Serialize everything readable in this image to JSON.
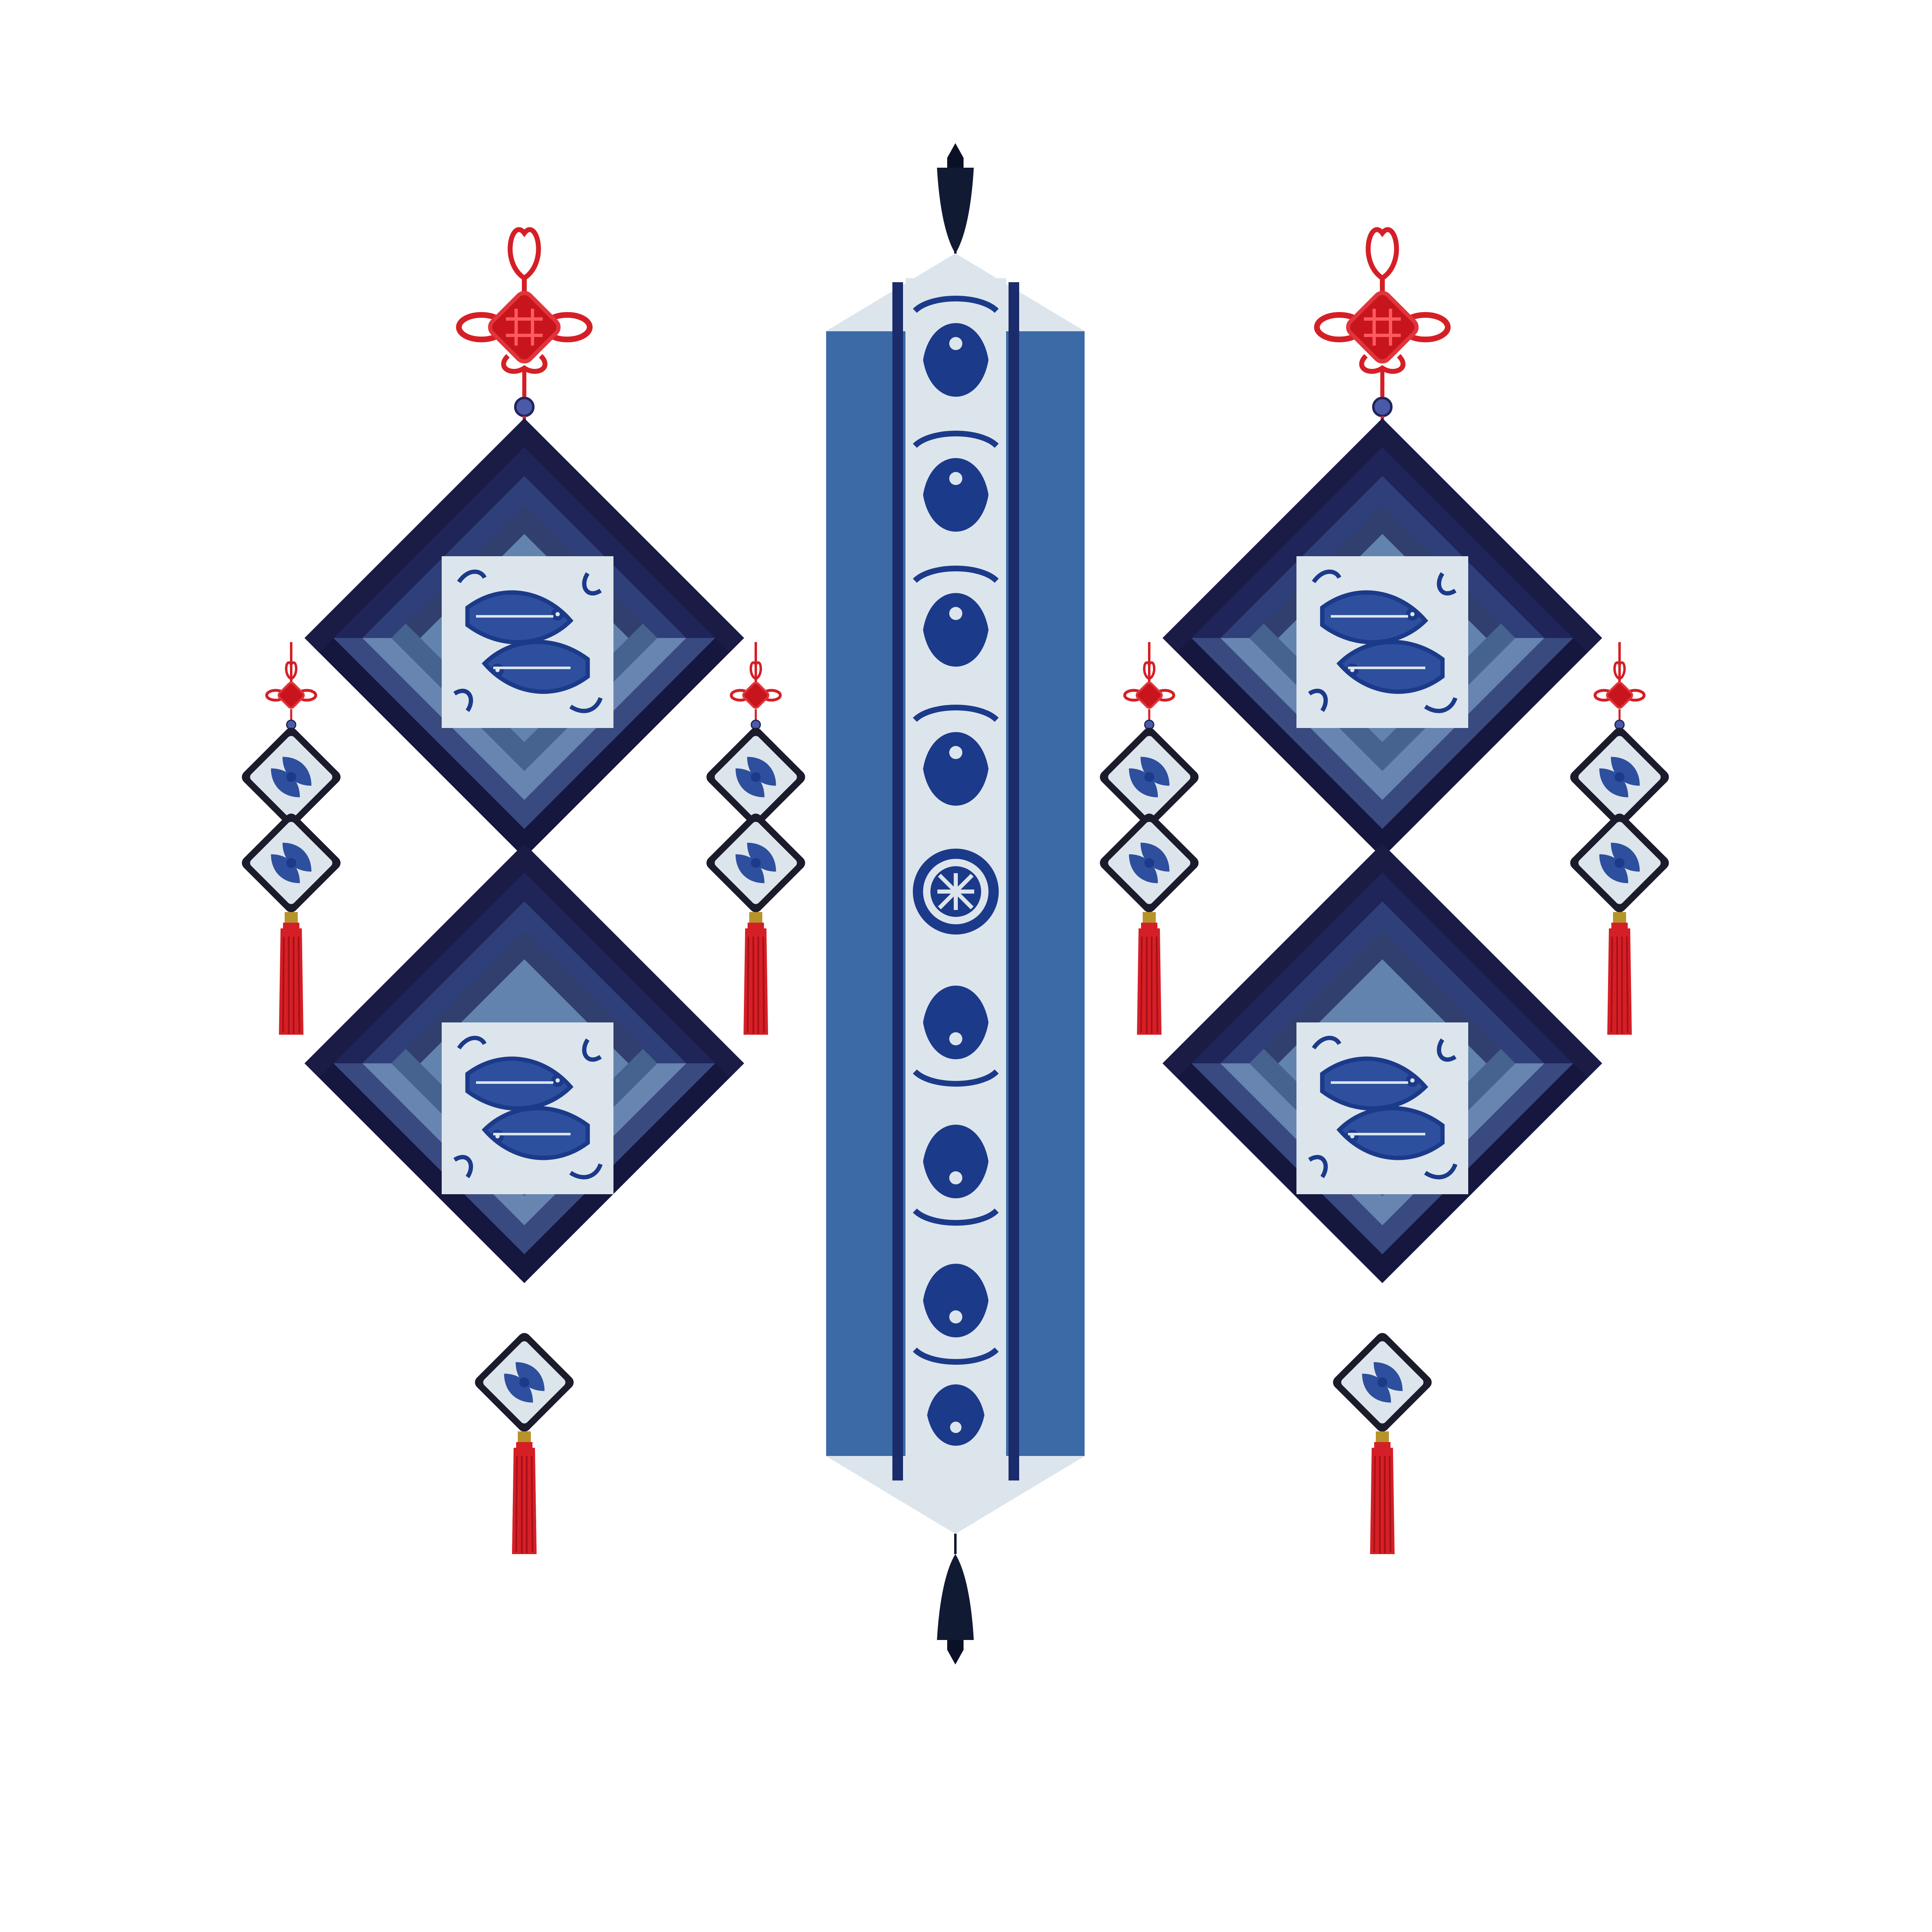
{
  "canvas": {
    "background": "#ffffff"
  },
  "palette": {
    "navy_dark": "#15173f",
    "navy": "#1f2558",
    "indigo": "#2f3f7a",
    "slate_blue": "#46628f",
    "steel_blue": "#6283ad",
    "light_blue": "#7796bf",
    "runner_blue": "#3b6aa6",
    "runner_stripe": "#1a2c6b",
    "panel_light": "#dde5ec",
    "pattern_blue": "#1b3a8a",
    "knot_red": "#d51f26",
    "tassel_dark": "#101a33"
  },
  "icons": {
    "left_pendant": "chinese-knot-hanging-pendant-icon",
    "right_pendant": "chinese-knot-hanging-pendant-icon",
    "center_runner": "fish-papercut-table-runner-icon",
    "fish_panel": "twin-fish-papercut-icon",
    "medallion": "endless-knot-medallion-icon",
    "tassel": "tassel-icon"
  }
}
